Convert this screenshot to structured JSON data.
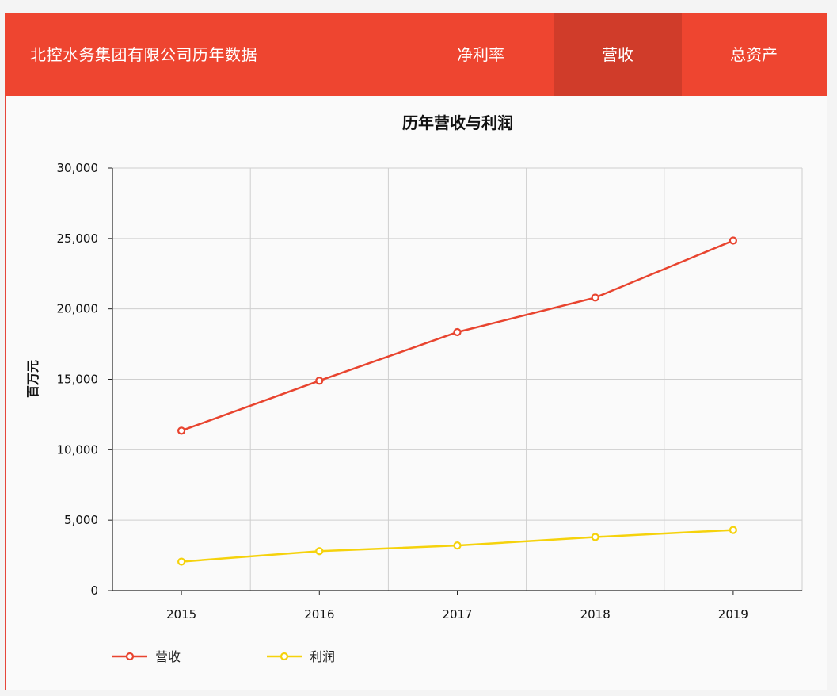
{
  "header": {
    "title": "北控水务集团有限公司历年数据",
    "tabs": [
      {
        "label": "净利率",
        "active": false
      },
      {
        "label": "营收",
        "active": true
      },
      {
        "label": "总资产",
        "active": false
      }
    ]
  },
  "colors": {
    "accent": "#ee4530",
    "active_tab": "#d03c2a",
    "revenue": "#e8442f",
    "profit": "#f5d20c"
  },
  "chart_data": {
    "type": "line",
    "title": "历年营收与利润",
    "xlabel": "",
    "ylabel": "百万元",
    "categories": [
      "2015",
      "2016",
      "2017",
      "2018",
      "2019"
    ],
    "ylim": [
      0,
      30000
    ],
    "yticks": [
      0,
      5000,
      10000,
      15000,
      20000,
      25000,
      30000
    ],
    "ytick_labels": [
      "0",
      "5,000",
      "10,000",
      "15,000",
      "20,000",
      "25,000",
      "30,000"
    ],
    "grid": true,
    "legend_position": "bottom-left",
    "series": [
      {
        "name": "营收",
        "color": "#e8442f",
        "values": [
          11350,
          14900,
          18350,
          20800,
          24850
        ]
      },
      {
        "name": "利润",
        "color": "#f5d20c",
        "values": [
          2050,
          2800,
          3200,
          3800,
          4300
        ]
      }
    ]
  }
}
